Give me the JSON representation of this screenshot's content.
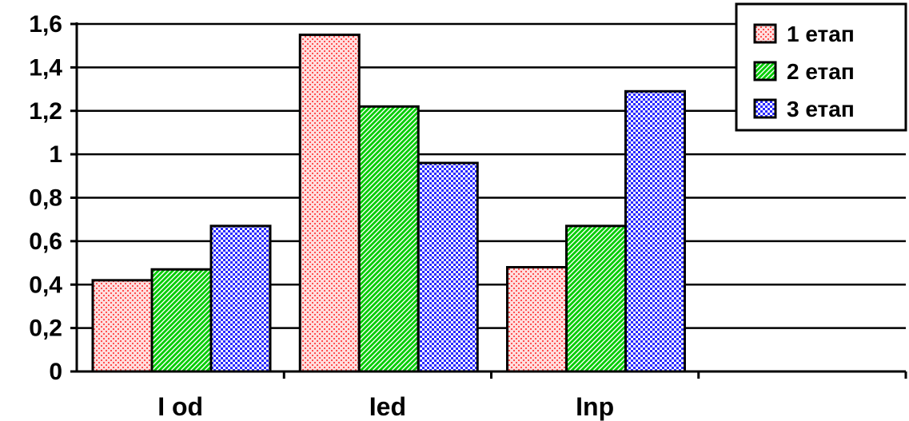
{
  "chart_data": {
    "type": "bar",
    "categories": [
      "I od",
      "Ied",
      "Inp",
      ""
    ],
    "series": [
      {
        "name": "1 етап",
        "values": [
          0.42,
          1.55,
          0.48,
          null
        ],
        "color": "#ff9999"
      },
      {
        "name": "2 етап",
        "values": [
          0.47,
          1.22,
          0.67,
          null
        ],
        "color": "#33cc33"
      },
      {
        "name": "3 етап",
        "values": [
          0.67,
          0.96,
          1.29,
          null
        ],
        "color": "#3333ff"
      }
    ],
    "ylim": [
      0,
      1.6
    ],
    "yticks": [
      "0",
      "0,2",
      "0,4",
      "0,6",
      "0,8",
      "1",
      "1,2",
      "1,4",
      "1,6"
    ],
    "grid": true,
    "legend_position": "top-right"
  }
}
